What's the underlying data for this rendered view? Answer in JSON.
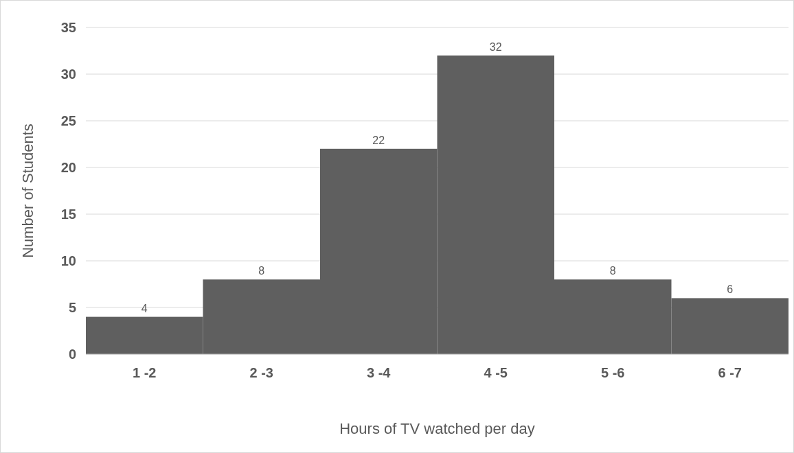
{
  "chart_data": {
    "type": "bar",
    "xlabel": "Hours of TV watched per day",
    "ylabel": "Number of Students",
    "categories": [
      "1 -2",
      "2 -3",
      "3 -4",
      "4 -5",
      "5 -6",
      "6 -7"
    ],
    "values": [
      4,
      8,
      22,
      32,
      8,
      6
    ],
    "color": "#5f5f5f",
    "ylim": [
      0,
      35
    ],
    "yticks": [
      0,
      5,
      10,
      15,
      20,
      25,
      30,
      35
    ],
    "grid": "y",
    "data_labels": true
  }
}
